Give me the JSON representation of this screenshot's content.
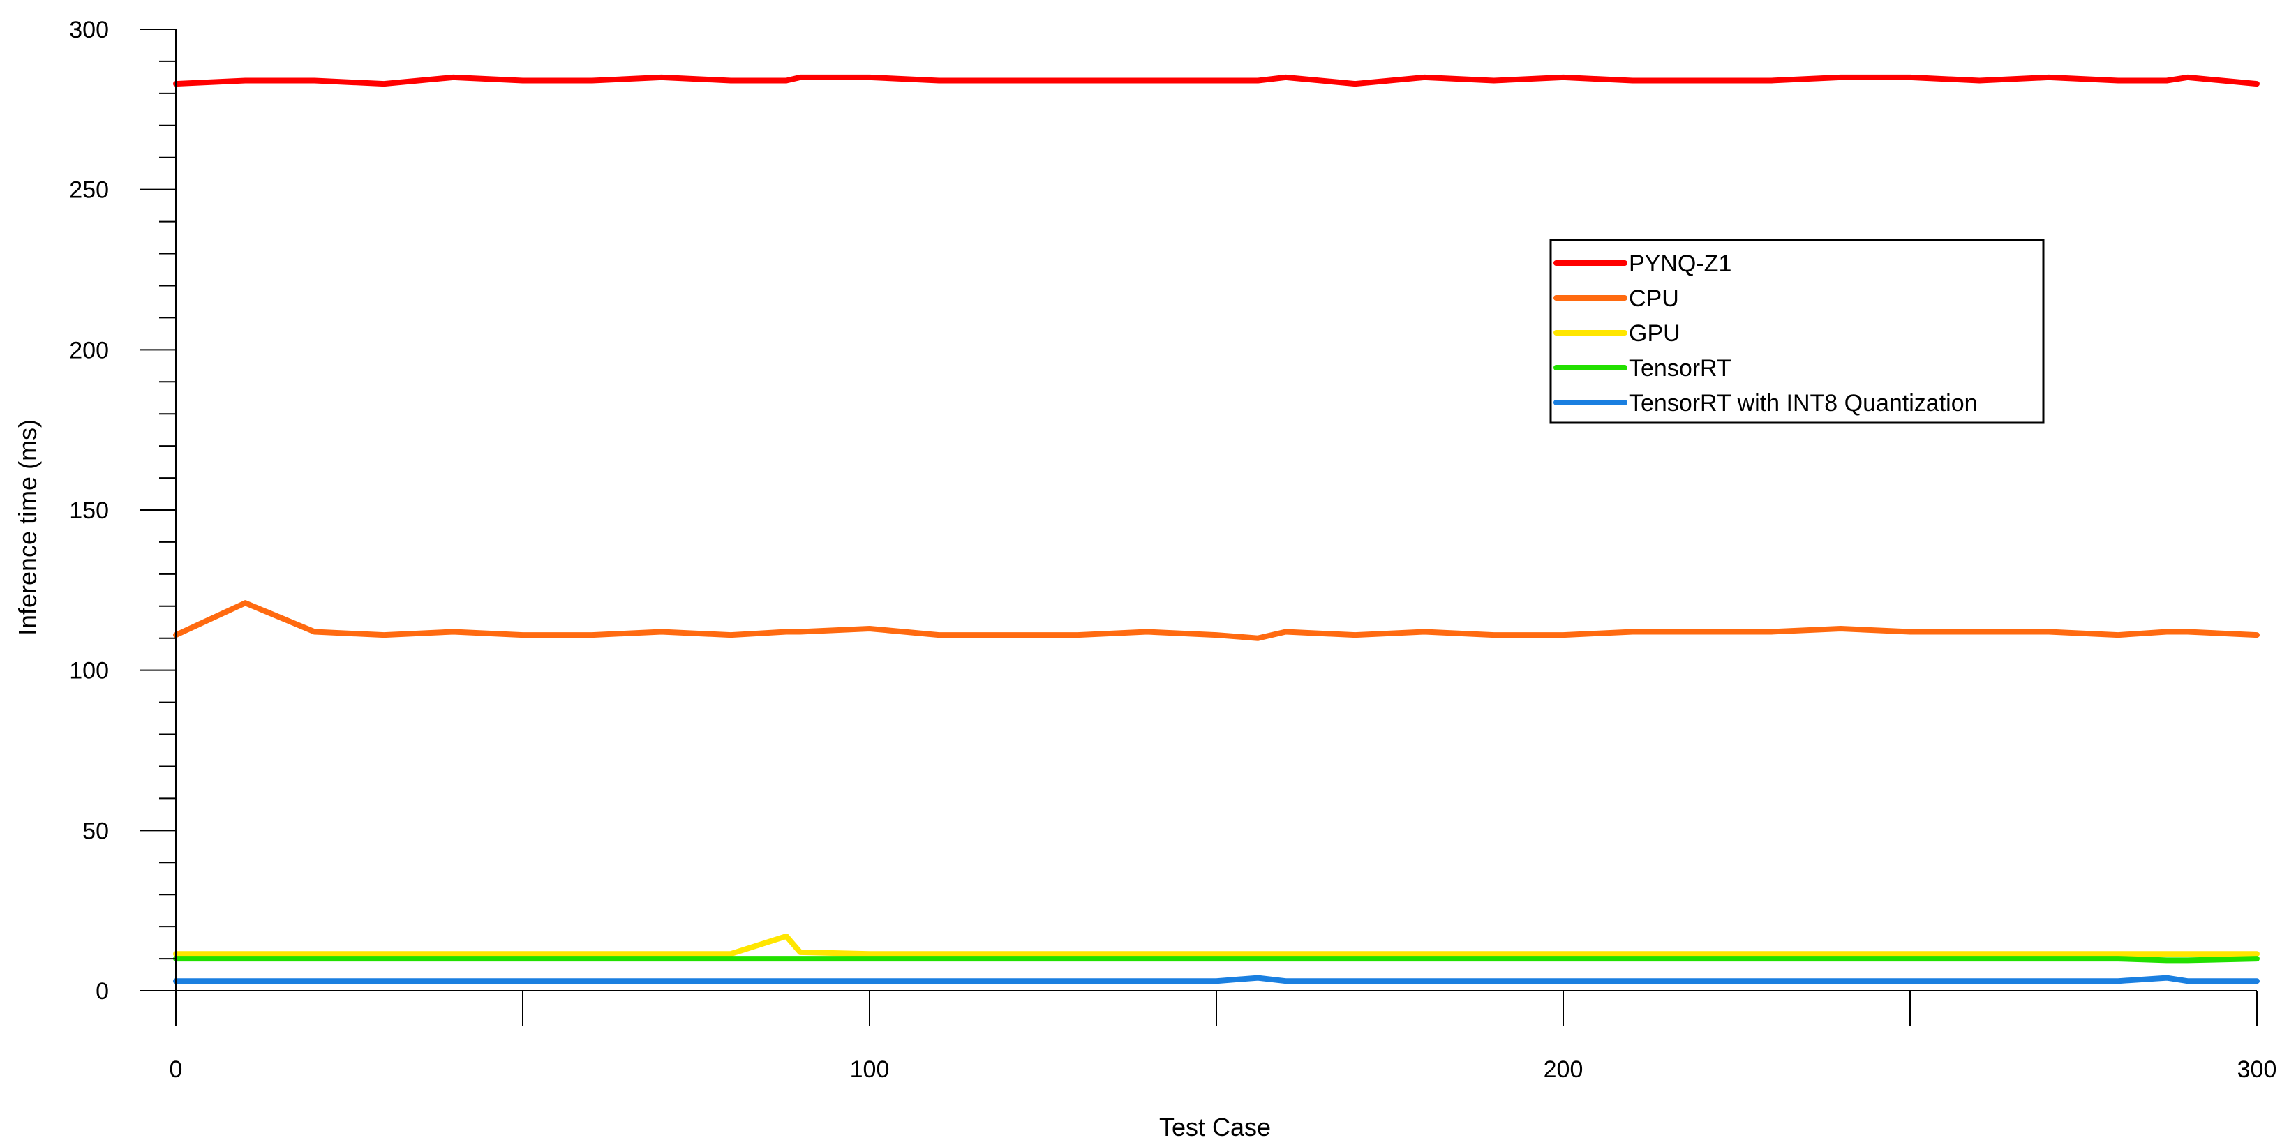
{
  "chart_data": {
    "type": "line",
    "xlabel": "Test Case",
    "ylabel": "Inference time (ms)",
    "xlim": [
      0,
      300
    ],
    "ylim": [
      0,
      300
    ],
    "xticks": [
      0,
      100,
      200,
      300
    ],
    "xtick_labels": [
      "0",
      "100",
      "200",
      "300"
    ],
    "yticks": [
      0,
      50,
      100,
      150,
      200,
      250,
      300
    ],
    "ytick_labels": [
      "0",
      "50",
      "100",
      "150",
      "200",
      "250",
      "300"
    ],
    "grid": false,
    "legend_position": "upper-right",
    "x": [
      0,
      10,
      20,
      30,
      40,
      50,
      60,
      70,
      80,
      88,
      90,
      100,
      110,
      120,
      130,
      140,
      150,
      156,
      160,
      170,
      180,
      190,
      200,
      210,
      220,
      230,
      240,
      250,
      260,
      270,
      280,
      287,
      290,
      300
    ],
    "series": [
      {
        "name": "PYNQ-Z1",
        "color": "#ff0000",
        "values": [
          283,
          284,
          284,
          283,
          285,
          284,
          284,
          285,
          284,
          284,
          285,
          285,
          284,
          284,
          284,
          284,
          284,
          284,
          285,
          283,
          285,
          284,
          285,
          284,
          284,
          284,
          285,
          285,
          284,
          285,
          284,
          284,
          285,
          283
        ]
      },
      {
        "name": "CPU",
        "color": "#ff6a10",
        "values": [
          111,
          121,
          112,
          111,
          112,
          111,
          111,
          112,
          111,
          112,
          112,
          113,
          111,
          111,
          111,
          112,
          111,
          110,
          112,
          111,
          112,
          111,
          111,
          112,
          112,
          112,
          113,
          112,
          112,
          112,
          111,
          112,
          112,
          111
        ]
      },
      {
        "name": "GPU",
        "color": "#ffe600",
        "values": [
          11.5,
          11.5,
          11.5,
          11.5,
          11.5,
          11.5,
          11.5,
          11.5,
          11.5,
          17,
          12,
          11.5,
          11.5,
          11.5,
          11.5,
          11.5,
          11.5,
          11.5,
          11.5,
          11.5,
          11.5,
          11.5,
          11.5,
          11.5,
          11.5,
          11.5,
          11.5,
          11.5,
          11.5,
          11.5,
          11.5,
          11.5,
          11.5,
          11.5
        ]
      },
      {
        "name": "TensorRT",
        "color": "#22e000",
        "values": [
          10,
          10,
          10,
          10,
          10,
          10,
          10,
          10,
          10,
          10,
          10,
          10,
          10,
          10,
          10,
          10,
          10,
          10,
          10,
          10,
          10,
          10,
          10,
          10,
          10,
          10,
          10,
          10,
          10,
          10,
          10,
          9.5,
          9.5,
          10
        ]
      },
      {
        "name": "TensorRT with INT8 Quantization",
        "color": "#1a7fe0",
        "values": [
          3,
          3,
          3,
          3,
          3,
          3,
          3,
          3,
          3,
          3,
          3,
          3,
          3,
          3,
          3,
          3,
          3,
          4,
          3,
          3,
          3,
          3,
          3,
          3,
          3,
          3,
          3,
          3,
          3,
          3,
          3,
          4,
          3,
          3
        ]
      }
    ]
  }
}
